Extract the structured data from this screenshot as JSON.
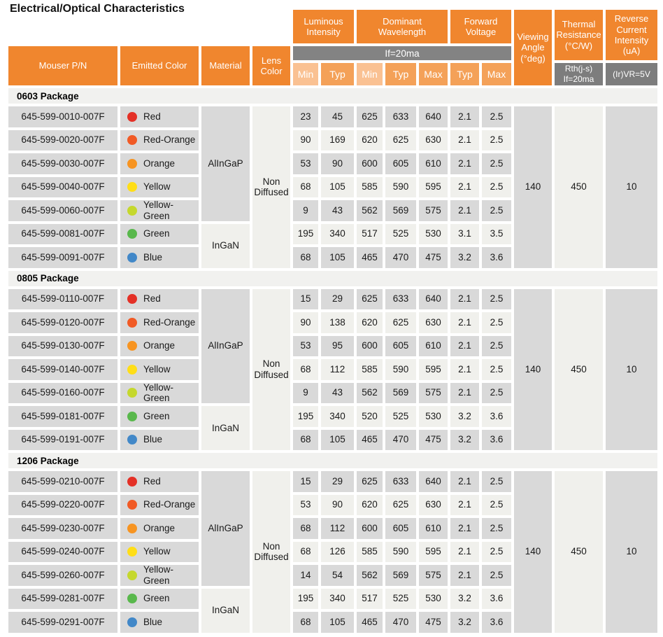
{
  "title": "Electrical/Optical Characteristics",
  "palette": {
    "header_orange": "#F0862E",
    "subheader_light_orange": "#FAC192",
    "subheader_medium_orange": "#F4A158",
    "condition_bar_gray": "#838383",
    "subnote_gray": "#7D7D7D",
    "row_dark_gray": "#D9D9D9",
    "row_light_gray": "#F0F0EC",
    "package_band_gray": "#F1F1EF"
  },
  "header": {
    "columns": [
      "Mouser P/N",
      "Emitted Color",
      "Material",
      "Lens Color"
    ],
    "groups": [
      {
        "label": "Luminous Intensity",
        "subs": [
          "Min",
          "Typ"
        ]
      },
      {
        "label": "Dominant Wavelength",
        "subs": [
          "Min",
          "Typ",
          "Max"
        ]
      },
      {
        "label": "Forward Voltage",
        "subs": [
          "Typ",
          "Max"
        ]
      }
    ],
    "condition_bar": "If=20ma",
    "viewing_angle_label": "Viewing Angle (°deg)",
    "thermal": {
      "label": "Thermal Resistance (°C/W)",
      "sub": "Rth(j-s) If=20ma"
    },
    "reverse": {
      "label": "Reverse Current Intensity (uA)",
      "sub": "(Ir)VR=5V"
    }
  },
  "packages": [
    {
      "name": "0603 Package",
      "material_groups": [
        {
          "name": "AlInGaP",
          "rows": 5
        },
        {
          "name": "InGaN",
          "rows": 2
        }
      ],
      "lens": "Non Diffused",
      "viewing_angle": "140",
      "thermal_resistance": "450",
      "reverse_current": "10",
      "rows": [
        {
          "pn": "645-599-0010-007F",
          "color": "Red",
          "dot": "#E43026",
          "values": [
            "23",
            "45",
            "625",
            "633",
            "640",
            "2.1",
            "2.5"
          ]
        },
        {
          "pn": "645-599-0020-007F",
          "color": "Red-Orange",
          "dot": "#F15A25",
          "values": [
            "90",
            "169",
            "620",
            "625",
            "630",
            "2.1",
            "2.5"
          ]
        },
        {
          "pn": "645-599-0030-007F",
          "color": "Orange",
          "dot": "#F79421",
          "values": [
            "53",
            "90",
            "600",
            "605",
            "610",
            "2.1",
            "2.5"
          ]
        },
        {
          "pn": "645-599-0040-007F",
          "color": "Yellow",
          "dot": "#FFDE17",
          "values": [
            "68",
            "105",
            "585",
            "590",
            "595",
            "2.1",
            "2.5"
          ]
        },
        {
          "pn": "645-599-0060-007F",
          "color": "Yellow-Green",
          "dot": "#C5D82D",
          "values": [
            "9",
            "43",
            "562",
            "569",
            "575",
            "2.1",
            "2.5"
          ]
        },
        {
          "pn": "645-599-0081-007F",
          "color": "Green",
          "dot": "#59B84C",
          "values": [
            "195",
            "340",
            "517",
            "525",
            "530",
            "3.1",
            "3.5"
          ]
        },
        {
          "pn": "645-599-0091-007F",
          "color": "Blue",
          "dot": "#4288C8",
          "values": [
            "68",
            "105",
            "465",
            "470",
            "475",
            "3.2",
            "3.6"
          ]
        }
      ]
    },
    {
      "name": "0805 Package",
      "material_groups": [
        {
          "name": "AlInGaP",
          "rows": 5
        },
        {
          "name": "InGaN",
          "rows": 2
        }
      ],
      "lens": "Non Diffused",
      "viewing_angle": "140",
      "thermal_resistance": "450",
      "reverse_current": "10",
      "rows": [
        {
          "pn": "645-599-0110-007F",
          "color": "Red",
          "dot": "#E43026",
          "values": [
            "15",
            "29",
            "625",
            "633",
            "640",
            "2.1",
            "2.5"
          ]
        },
        {
          "pn": "645-599-0120-007F",
          "color": "Red-Orange",
          "dot": "#F15A25",
          "values": [
            "90",
            "138",
            "620",
            "625",
            "630",
            "2.1",
            "2.5"
          ]
        },
        {
          "pn": "645-599-0130-007F",
          "color": "Orange",
          "dot": "#F79421",
          "values": [
            "53",
            "95",
            "600",
            "605",
            "610",
            "2.1",
            "2.5"
          ]
        },
        {
          "pn": "645-599-0140-007F",
          "color": "Yellow",
          "dot": "#FFDE17",
          "values": [
            "68",
            "112",
            "585",
            "590",
            "595",
            "2.1",
            "2.5"
          ]
        },
        {
          "pn": "645-599-0160-007F",
          "color": "Yellow-Green",
          "dot": "#C5D82D",
          "values": [
            "9",
            "43",
            "562",
            "569",
            "575",
            "2.1",
            "2.5"
          ]
        },
        {
          "pn": "645-599-0181-007F",
          "color": "Green",
          "dot": "#59B84C",
          "values": [
            "195",
            "340",
            "520",
            "525",
            "530",
            "3.2",
            "3.6"
          ]
        },
        {
          "pn": "645-599-0191-007F",
          "color": "Blue",
          "dot": "#4288C8",
          "values": [
            "68",
            "105",
            "465",
            "470",
            "475",
            "3.2",
            "3.6"
          ]
        }
      ]
    },
    {
      "name": "1206 Package",
      "material_groups": [
        {
          "name": "AlInGaP",
          "rows": 5
        },
        {
          "name": "InGaN",
          "rows": 2
        }
      ],
      "lens": "Non Diffused",
      "viewing_angle": "140",
      "thermal_resistance": "450",
      "reverse_current": "10",
      "rows": [
        {
          "pn": "645-599-0210-007F",
          "color": "Red",
          "dot": "#E43026",
          "values": [
            "15",
            "29",
            "625",
            "633",
            "640",
            "2.1",
            "2.5"
          ]
        },
        {
          "pn": "645-599-0220-007F",
          "color": "Red-Orange",
          "dot": "#F15A25",
          "values": [
            "53",
            "90",
            "620",
            "625",
            "630",
            "2.1",
            "2.5"
          ]
        },
        {
          "pn": "645-599-0230-007F",
          "color": "Orange",
          "dot": "#F79421",
          "values": [
            "68",
            "112",
            "600",
            "605",
            "610",
            "2.1",
            "2.5"
          ]
        },
        {
          "pn": "645-599-0240-007F",
          "color": "Yellow",
          "dot": "#FFDE17",
          "values": [
            "68",
            "126",
            "585",
            "590",
            "595",
            "2.1",
            "2.5"
          ]
        },
        {
          "pn": "645-599-0260-007F",
          "color": "Yellow-Green",
          "dot": "#C5D82D",
          "values": [
            "14",
            "54",
            "562",
            "569",
            "575",
            "2.1",
            "2.5"
          ]
        },
        {
          "pn": "645-599-0281-007F",
          "color": "Green",
          "dot": "#59B84C",
          "values": [
            "195",
            "340",
            "517",
            "525",
            "530",
            "3.2",
            "3.6"
          ]
        },
        {
          "pn": "645-599-0291-007F",
          "color": "Blue",
          "dot": "#4288C8",
          "values": [
            "68",
            "105",
            "465",
            "470",
            "475",
            "3.2",
            "3.6"
          ]
        }
      ]
    }
  ]
}
